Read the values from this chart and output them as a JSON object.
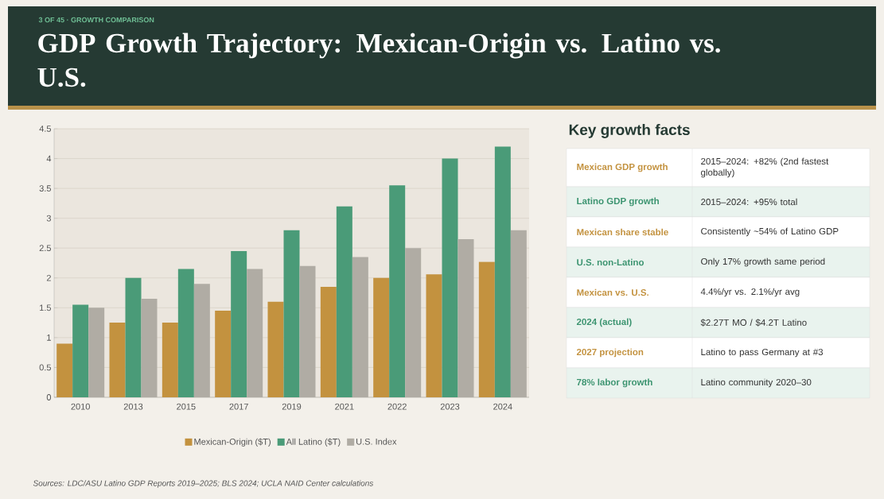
{
  "chart_data": [
    {
      "type": "bar",
      "title": "GDP Growth Trajectory: Mexican-Origin vs. Latino vs. U.S.",
      "subtitle": "3 OF 45 · GROWTH COMPARISON",
      "categories": [
        "2010",
        "2013",
        "2015",
        "2017",
        "2019",
        "2021",
        "2022",
        "2023",
        "2024"
      ],
      "series": [
        {
          "name": "Mexican-Origin ($T)",
          "color": "#c3923f",
          "values": [
            0.9,
            1.25,
            1.25,
            1.45,
            1.6,
            1.85,
            2.0,
            2.06,
            2.27
          ]
        },
        {
          "name": "All Latino ($T)",
          "color": "#4a9b78",
          "values": [
            1.55,
            2.0,
            2.15,
            2.45,
            2.8,
            3.2,
            3.55,
            4.0,
            4.2
          ]
        },
        {
          "name": "U.S. Index",
          "color": "#b0aca4",
          "values": [
            1.5,
            1.65,
            1.9,
            2.15,
            2.2,
            2.35,
            2.5,
            2.65,
            2.8
          ]
        }
      ],
      "ylim": [
        0,
        4.5
      ],
      "yticks": [
        0,
        0.5,
        1,
        1.5,
        2,
        2.5,
        3,
        3.5,
        4,
        4.5
      ],
      "grid": "y",
      "legend": "bottom",
      "annotations": [
        "Sources: LDC/ASU Latino GDP Reports 2019–2025; BLS 2024; UCLA NAID Center calculations"
      ]
    },
    {
      "type": "other",
      "title": "Key growth facts",
      "categories": [
        "Mexican GDP growth",
        "Latino GDP growth",
        "Mexican share stable",
        "U.S. non-Latino",
        "Mexican vs. U.S.",
        "2024 (actual)",
        "2027 projection",
        "78% labor growth"
      ],
      "annotations": [
        "2015–2024: +82% (2nd fastest globally)",
        "2015–2024: +95% total",
        "Consistently ~54% of Latino GDP",
        "Only 17% growth same period",
        "4.4%/yr vs. 2.1%/yr avg",
        "$2.27T MO  /  $4.2T Latino",
        "Latino to pass Germany at #3",
        "Latino community 2020–30"
      ]
    }
  ]
}
